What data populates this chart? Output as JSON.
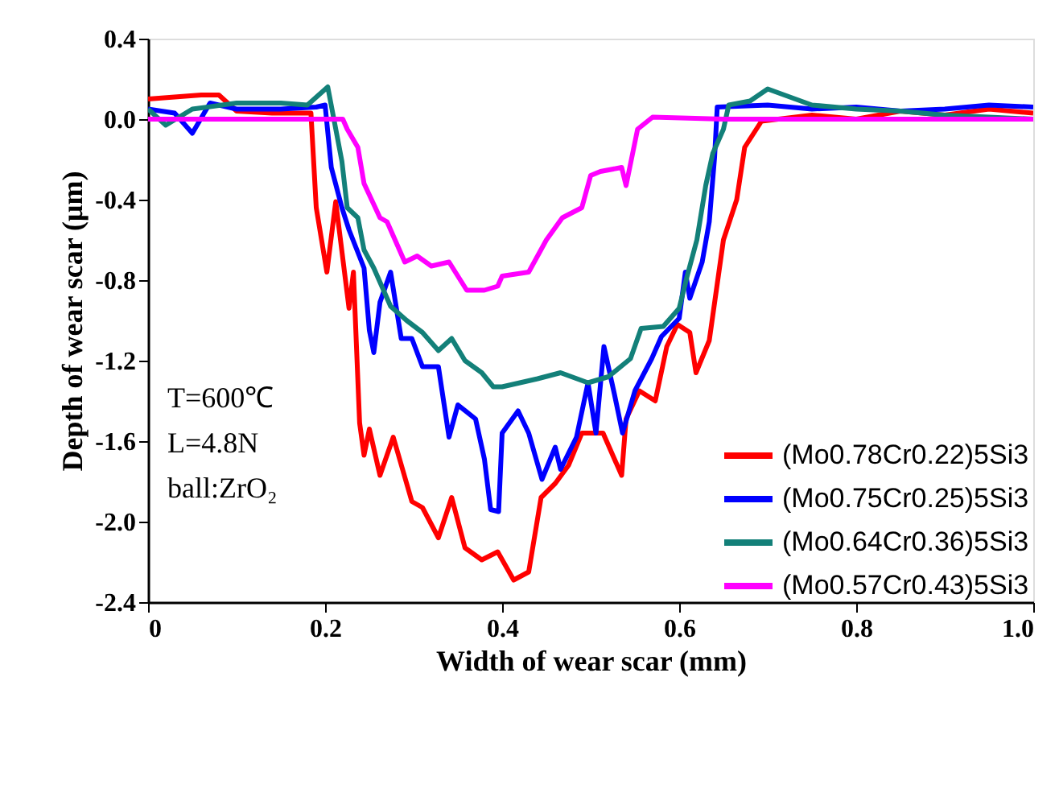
{
  "chart_data": {
    "type": "line",
    "xlabel": "Width of wear scar (mm)",
    "ylabel": "Depth of wear scar (μm)",
    "xlim": [
      0,
      1
    ],
    "xticks": [
      0,
      0.2,
      0.4,
      0.6,
      0.8,
      {
        "value": 1,
        "label": "1.0"
      }
    ],
    "ylim": [
      -2.4,
      0.4
    ],
    "yticks": [
      {
        "value": -2.4,
        "label": "-2.4"
      },
      {
        "value": -2,
        "label": "-2.0"
      },
      -1.6,
      -1.2,
      -0.8,
      -0.4,
      {
        "value": 0,
        "label": "0.0"
      },
      0.4
    ],
    "grid": false,
    "legend": "bottom right",
    "line_style": "solid",
    "marker": "none",
    "annotations": [
      "T=600℃",
      "L=4.8N",
      "ball:ZrO₂"
    ],
    "series": [
      {
        "name": "(Mo0.78Cr0.22)5Si3",
        "color": "#ff0000",
        "x": [
          0,
          0.03,
          0.06,
          0.08,
          0.1,
          0.14,
          0.18,
          0.184,
          0.19,
          0.202,
          0.212,
          0.227,
          0.232,
          0.239,
          0.244,
          0.25,
          0.262,
          0.277,
          0.298,
          0.31,
          0.328,
          0.343,
          0.358,
          0.377,
          0.395,
          0.413,
          0.43,
          0.444,
          0.46,
          0.475,
          0.49,
          0.514,
          0.535,
          0.54,
          0.555,
          0.573,
          0.586,
          0.598,
          0.612,
          0.619,
          0.634,
          0.65,
          0.665,
          0.674,
          0.693,
          0.75,
          0.8,
          0.85,
          0.9,
          0.95,
          1.0
        ],
        "values": [
          0.1,
          0.11,
          0.12,
          0.12,
          0.04,
          0.03,
          0.03,
          0.03,
          -0.44,
          -0.76,
          -0.41,
          -0.94,
          -0.76,
          -1.51,
          -1.67,
          -1.54,
          -1.77,
          -1.58,
          -1.9,
          -1.93,
          -2.08,
          -1.88,
          -2.13,
          -2.19,
          -2.15,
          -2.29,
          -2.25,
          -1.88,
          -1.81,
          -1.72,
          -1.56,
          -1.56,
          -1.77,
          -1.49,
          -1.35,
          -1.4,
          -1.13,
          -1.02,
          -1.06,
          -1.26,
          -1.1,
          -0.6,
          -0.4,
          -0.14,
          -0.01,
          0.02,
          0.0,
          0.04,
          0.02,
          0.05,
          0.03
        ]
      },
      {
        "name": "(Mo0.75Cr0.25)5Si3",
        "color": "#0000ff",
        "x": [
          0,
          0.03,
          0.05,
          0.07,
          0.1,
          0.15,
          0.19,
          0.2,
          0.207,
          0.219,
          0.227,
          0.244,
          0.25,
          0.255,
          0.262,
          0.274,
          0.286,
          0.298,
          0.31,
          0.328,
          0.34,
          0.35,
          0.37,
          0.38,
          0.387,
          0.396,
          0.4,
          0.418,
          0.43,
          0.445,
          0.46,
          0.466,
          0.484,
          0.497,
          0.506,
          0.515,
          0.527,
          0.536,
          0.55,
          0.569,
          0.58,
          0.6,
          0.607,
          0.612,
          0.626,
          0.634,
          0.64,
          0.643,
          0.7,
          0.75,
          0.8,
          0.85,
          0.9,
          0.95,
          1.0
        ],
        "values": [
          0.05,
          0.03,
          -0.07,
          0.08,
          0.05,
          0.05,
          0.06,
          0.07,
          -0.24,
          -0.44,
          -0.55,
          -0.74,
          -1.05,
          -1.16,
          -0.91,
          -0.76,
          -1.09,
          -1.09,
          -1.23,
          -1.23,
          -1.58,
          -1.42,
          -1.49,
          -1.69,
          -1.94,
          -1.95,
          -1.56,
          -1.45,
          -1.56,
          -1.79,
          -1.63,
          -1.74,
          -1.58,
          -1.31,
          -1.56,
          -1.13,
          -1.37,
          -1.56,
          -1.35,
          -1.19,
          -1.08,
          -0.99,
          -0.76,
          -0.89,
          -0.71,
          -0.51,
          -0.19,
          0.06,
          0.07,
          0.05,
          0.06,
          0.04,
          0.05,
          0.07,
          0.06
        ]
      },
      {
        "name": "(Mo0.64Cr0.36)5Si3",
        "color": "#138079",
        "x": [
          0,
          0.02,
          0.05,
          0.1,
          0.15,
          0.18,
          0.203,
          0.219,
          0.225,
          0.237,
          0.244,
          0.255,
          0.274,
          0.292,
          0.31,
          0.328,
          0.343,
          0.358,
          0.377,
          0.39,
          0.4,
          0.44,
          0.466,
          0.497,
          0.52,
          0.545,
          0.557,
          0.582,
          0.6,
          0.609,
          0.62,
          0.63,
          0.638,
          0.65,
          0.656,
          0.68,
          0.7,
          0.75,
          0.8,
          0.85,
          0.9,
          0.95,
          1.0
        ],
        "values": [
          0.05,
          -0.03,
          0.05,
          0.08,
          0.08,
          0.07,
          0.16,
          -0.21,
          -0.44,
          -0.49,
          -0.65,
          -0.74,
          -0.93,
          -1.0,
          -1.06,
          -1.15,
          -1.09,
          -1.2,
          -1.26,
          -1.33,
          -1.33,
          -1.29,
          -1.26,
          -1.31,
          -1.28,
          -1.19,
          -1.04,
          -1.03,
          -0.94,
          -0.78,
          -0.6,
          -0.33,
          -0.17,
          -0.05,
          0.07,
          0.09,
          0.15,
          0.07,
          0.05,
          0.04,
          0.02,
          0.01,
          0.0
        ]
      },
      {
        "name": "(Mo0.57Cr0.43)5Si3",
        "color": "#ff00ff",
        "x": [
          0,
          0.1,
          0.2,
          0.22,
          0.225,
          0.237,
          0.244,
          0.262,
          0.27,
          0.29,
          0.304,
          0.32,
          0.34,
          0.35,
          0.36,
          0.371,
          0.38,
          0.395,
          0.4,
          0.43,
          0.45,
          0.468,
          0.49,
          0.5,
          0.511,
          0.535,
          0.54,
          0.553,
          0.57,
          0.65,
          0.8,
          1.0
        ],
        "values": [
          0.0,
          0.0,
          0.0,
          0.0,
          -0.05,
          -0.14,
          -0.32,
          -0.49,
          -0.51,
          -0.71,
          -0.68,
          -0.73,
          -0.71,
          -0.78,
          -0.85,
          -0.85,
          -0.85,
          -0.83,
          -0.78,
          -0.76,
          -0.6,
          -0.49,
          -0.44,
          -0.28,
          -0.26,
          -0.24,
          -0.33,
          -0.05,
          0.01,
          0.0,
          0.0,
          0.0
        ]
      }
    ]
  }
}
